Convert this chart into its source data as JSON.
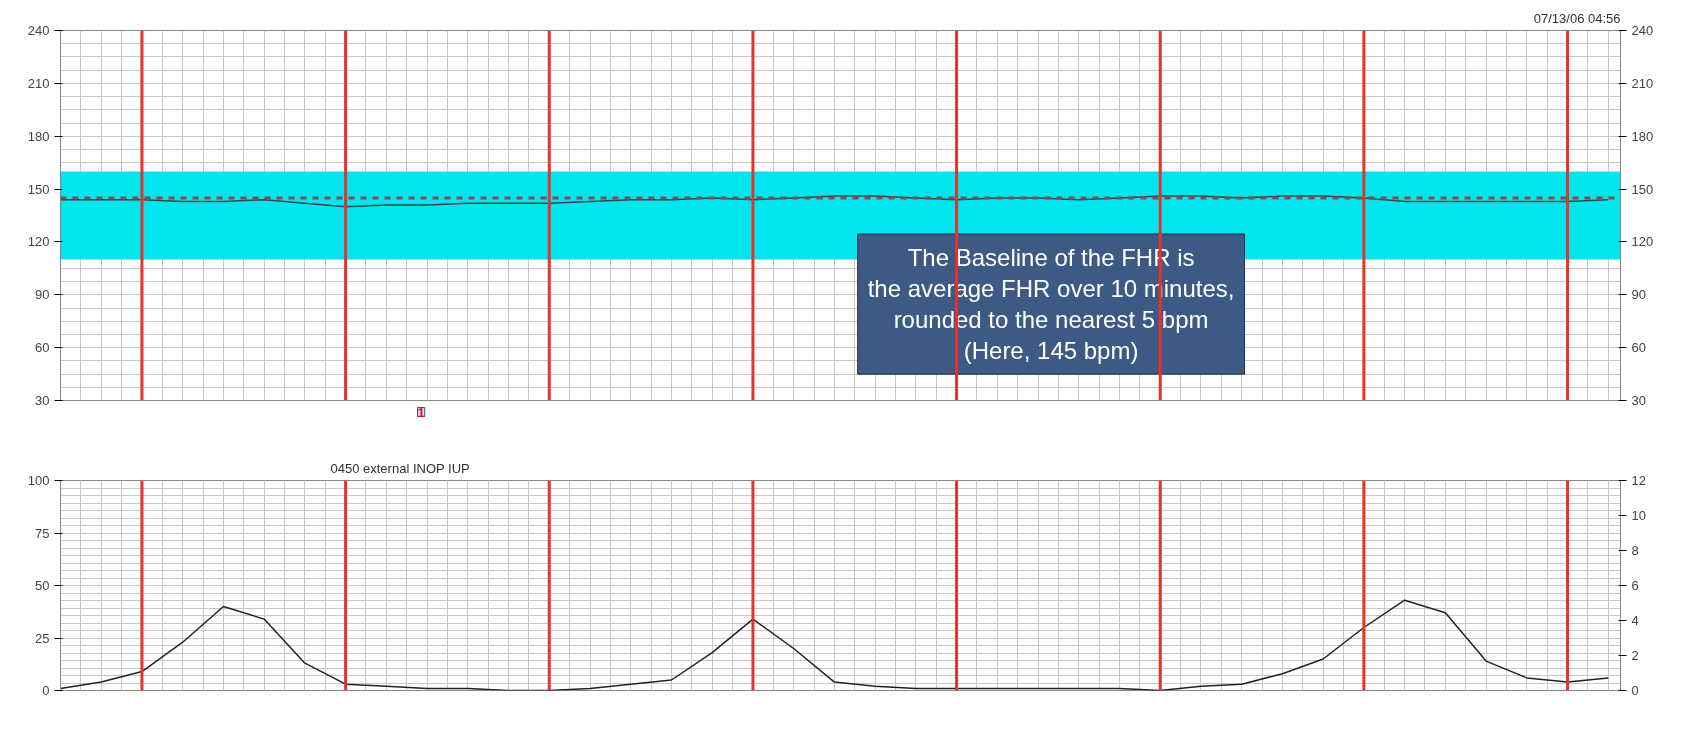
{
  "chart_data": [
    {
      "type": "line",
      "categories": [
        null,
        null,
        null,
        null,
        null,
        null,
        null,
        null,
        null,
        null,
        null,
        null,
        null,
        null,
        null,
        null,
        null,
        null,
        null,
        null,
        null,
        null,
        null,
        null,
        null,
        null,
        null,
        null,
        null,
        null,
        null,
        null,
        null,
        null,
        null,
        null,
        null,
        null,
        null
      ],
      "ylim": [
        30,
        240
      ],
      "yticks": [
        30,
        60,
        90,
        120,
        150,
        180,
        210,
        240
      ],
      "y2lim": [
        30,
        240
      ],
      "y2ticks": [
        30,
        60,
        90,
        120,
        150,
        180,
        210,
        240
      ],
      "tick_labels": "y",
      "grid": true,
      "line_style": "solid",
      "series": [
        {
          "color": "#2a4a4a",
          "values": [
            144,
            144,
            144,
            143,
            143,
            144,
            142,
            140,
            141,
            141,
            142,
            142,
            142,
            143,
            144,
            144,
            145,
            144,
            145,
            146,
            146,
            145,
            144,
            145,
            145,
            144,
            145,
            146,
            146,
            145,
            146,
            146,
            145,
            143,
            143,
            143,
            143,
            143,
            144
          ]
        }
      ],
      "bands": [
        {
          "axis": "y",
          "from": 110,
          "to": 160,
          "color": "#00e5ee"
        }
      ],
      "ref_lines": [
        {
          "axis": "y",
          "value": 145,
          "color": "#8b4a4a",
          "line_style": "dashed"
        }
      ],
      "annotations": [
        "07/13/06 04:56",
        "1",
        "The Baseline of the FHR is\nthe average FHR over 10 minutes,\nrounded to the nearest 5 bpm\n(Here, 145 bpm)"
      ]
    },
    {
      "type": "line",
      "categories": [
        null,
        null,
        null,
        null,
        null,
        null,
        null,
        null,
        null,
        null,
        null,
        null,
        null,
        null,
        null,
        null,
        null,
        null,
        null,
        null,
        null,
        null,
        null,
        null,
        null,
        null,
        null,
        null,
        null,
        null,
        null,
        null,
        null,
        null,
        null,
        null,
        null,
        null,
        null
      ],
      "ylim": [
        0,
        100
      ],
      "yticks": [
        0,
        25,
        50,
        75,
        100
      ],
      "y2lim": [
        0,
        12
      ],
      "y2ticks": [
        0,
        2,
        4,
        6,
        8,
        10,
        12
      ],
      "tick_labels": "y",
      "grid": true,
      "line_style": "solid",
      "series": [
        {
          "color": "#222222",
          "values": [
            1,
            4,
            9,
            23,
            40,
            34,
            13,
            3,
            2,
            1,
            1,
            0,
            0,
            1,
            3,
            5,
            18,
            34,
            20,
            4,
            2,
            1,
            1,
            1,
            1,
            1,
            1,
            0,
            2,
            3,
            8,
            15,
            30,
            43,
            37,
            14,
            6,
            4,
            6
          ]
        }
      ],
      "annotations": [
        "0450 external INOP IUP"
      ]
    }
  ]
}
